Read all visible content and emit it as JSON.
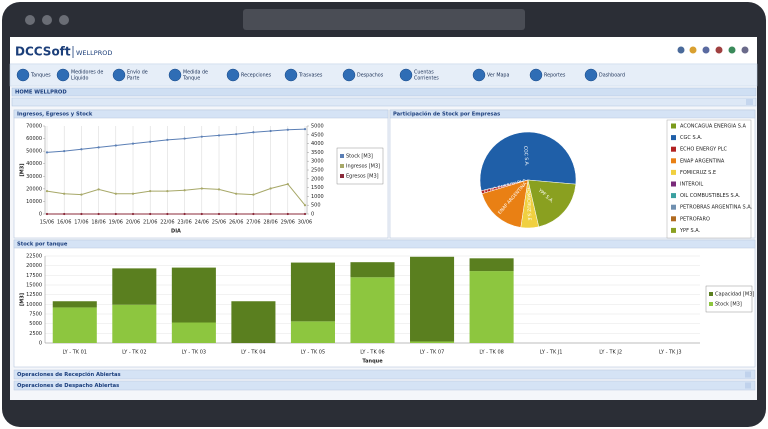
{
  "header": {
    "logo": "DCCSoft",
    "product": "WELLPROD"
  },
  "nav": [
    [
      "Tanques"
    ],
    [
      "Medidores de",
      "Líquido"
    ],
    [
      "Envío de",
      "Parte"
    ],
    [
      "Medida de",
      "Tanque"
    ],
    [
      "Recepciones"
    ],
    [
      "Trasvases"
    ],
    [
      "Despachos"
    ],
    [
      "Cuentas",
      "Corrientes"
    ],
    [
      "Ver Mapa"
    ],
    [
      "Reportes"
    ],
    [
      "Dashboard"
    ]
  ],
  "breadcrumb": "HOME WELLPROD",
  "chart_data": [
    {
      "type": "line",
      "title": "Ingresos, Egresos y Stock",
      "x_label": "DIA",
      "y_label": "[M3]",
      "categories": [
        "15/06",
        "16/06",
        "17/06",
        "18/06",
        "19/06",
        "20/06",
        "21/06",
        "22/06",
        "23/06",
        "24/06",
        "25/06",
        "26/06",
        "27/06",
        "28/06",
        "29/06",
        "30/06"
      ],
      "ylim": [
        0,
        70000
      ],
      "yticks": [
        0,
        10000,
        20000,
        30000,
        40000,
        50000,
        60000,
        70000
      ],
      "y2lim": [
        0,
        5000
      ],
      "y2ticks": [
        0,
        500,
        1000,
        1500,
        2000,
        2500,
        3000,
        3500,
        4000,
        4500,
        5000
      ],
      "grid": true,
      "legend": "right",
      "series": [
        {
          "name": "Stock [M3]",
          "color": "#5b7fb5",
          "values": [
            49000,
            50000,
            51500,
            53000,
            54500,
            56000,
            57500,
            59000,
            60000,
            61500,
            62500,
            63500,
            65000,
            66000,
            67000,
            67500
          ]
        },
        {
          "name": "Ingresos [M3]",
          "color": "#a7a868",
          "axis": "y2",
          "values": [
            1300,
            1150,
            1100,
            1400,
            1150,
            1150,
            1300,
            1300,
            1350,
            1450,
            1400,
            1150,
            1100,
            1450,
            1700,
            500
          ]
        },
        {
          "name": "Egresos [M3]",
          "color": "#8b2a3a",
          "axis": "y2",
          "values": [
            0,
            0,
            0,
            0,
            0,
            0,
            0,
            0,
            0,
            0,
            0,
            0,
            0,
            0,
            0,
            0
          ]
        }
      ]
    },
    {
      "type": "pie",
      "title": "Participación de Stock por Empresas",
      "legend": "right",
      "categories": [
        "ACONCAGUA ENERGIA S.A",
        "CGC S.A.",
        "ECHO ENERGY PLC",
        "ENAP ARGENTINA",
        "FOMICRUZ S.E",
        "INTEROIL",
        "OIL COMBUSTIBLES S.A.",
        "PETROBRAS ARGENTINA S.A.",
        "PETROFARO",
        "YPF S.A."
      ],
      "values": [
        0,
        55,
        1,
        18,
        6,
        0,
        0,
        0,
        0,
        20
      ],
      "colors": [
        "#7a9a1a",
        "#1f5fa8",
        "#b22222",
        "#e98014",
        "#f0d040",
        "#7a2a7a",
        "#3aa0a0",
        "#7090b0",
        "#b06a20",
        "#8aa020"
      ]
    },
    {
      "type": "stacked_bar",
      "title": "Stock por tanque",
      "x_label": "Tanque",
      "y_label": "[M3]",
      "categories": [
        "LY - TK 01",
        "LY - TK 02",
        "LY - TK 03",
        "LY - TK 04",
        "LY - TK 05",
        "LY - TK 06",
        "LY - TK 07",
        "LY - TK 08",
        "LY - TK J1",
        "LY - TK J2",
        "LY - TK J3"
      ],
      "ylim": [
        0,
        22500
      ],
      "yticks": [
        0,
        2500,
        5000,
        7500,
        10000,
        12500,
        15000,
        17500,
        20000,
        22500
      ],
      "grid": true,
      "legend": "right",
      "series": [
        {
          "name": "Capacidad [M3]",
          "color": "#5a7f1f",
          "values": [
            1600,
            9400,
            14200,
            10800,
            15200,
            3900,
            21900,
            3300,
            0,
            0,
            0
          ]
        },
        {
          "name": "Stock [M3]",
          "color": "#8dc63f",
          "values": [
            9200,
            9900,
            5300,
            0,
            5600,
            17000,
            400,
            18600,
            0,
            0,
            0
          ]
        }
      ]
    }
  ],
  "sections": [
    "Operaciones de Recepción Abiertas",
    "Operaciones de Despacho Abiertas"
  ]
}
